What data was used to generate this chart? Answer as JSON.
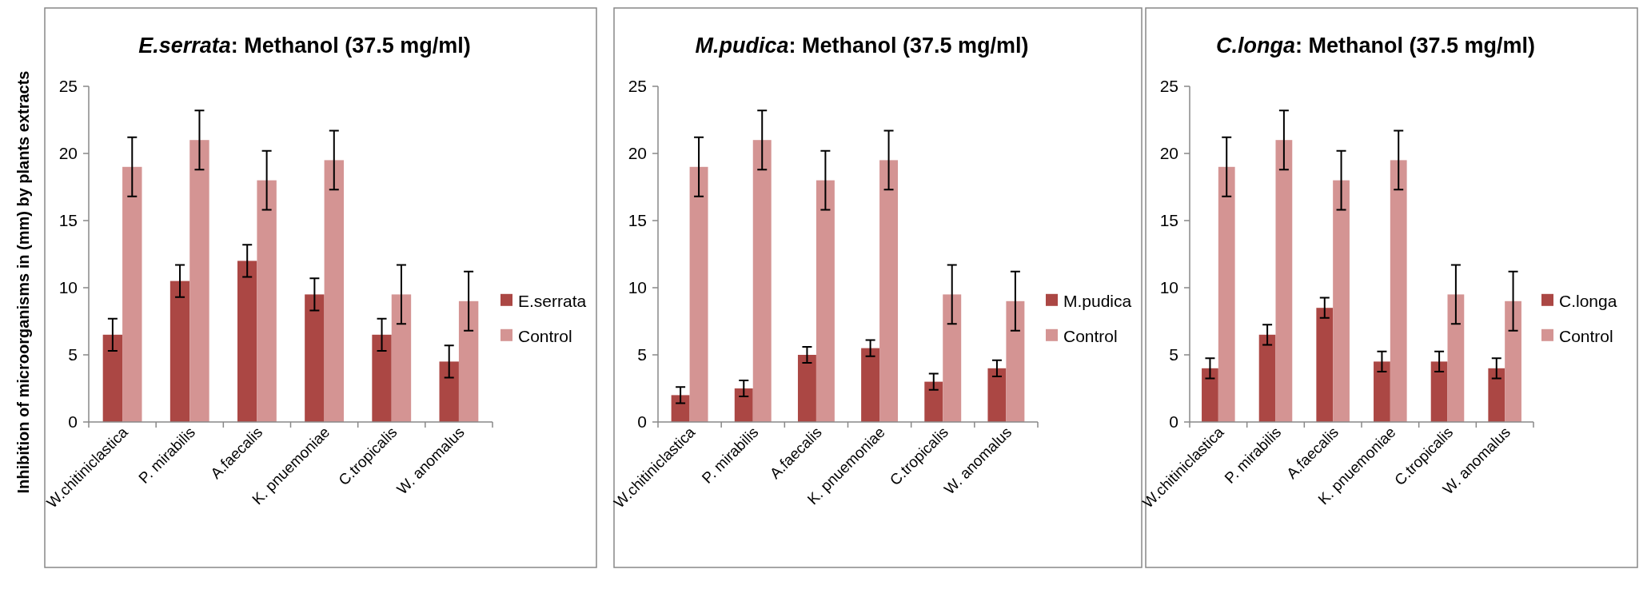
{
  "chart_data": [
    {
      "type": "bar",
      "title": "E.serrata: Methanol (37.5 mg/ml)",
      "ylabel": "Inhibition of microorganisms in (mm) by plants extracts",
      "categories": [
        "W.chitiniclastica",
        "P. mirabilis",
        "A.faecalis",
        "K. pnuemoniae",
        "C.tropicalis",
        "W. anomalus"
      ],
      "ylim": [
        0,
        25
      ],
      "yticks": [
        0,
        5,
        10,
        15,
        20,
        25
      ],
      "legend": "right",
      "series": [
        {
          "name": "E.serrata",
          "color": "#ab4744",
          "values": [
            6.5,
            10.5,
            12,
            9.5,
            6.5,
            4.5
          ],
          "errors": [
            1.2,
            1.2,
            1.2,
            1.2,
            1.2,
            1.2
          ]
        },
        {
          "name": "Control",
          "color": "#d49493",
          "values": [
            19,
            21,
            18,
            19.5,
            9.5,
            9
          ],
          "errors": [
            2.2,
            2.2,
            2.2,
            2.2,
            2.2,
            2.2
          ]
        }
      ]
    },
    {
      "type": "bar",
      "title": "M.pudica: Methanol (37.5 mg/ml)",
      "categories": [
        "W.chitiniclastica",
        "P. mirabilis",
        "A.faecalis",
        "K. pnuemoniae",
        "C.tropicalis",
        "W. anomalus"
      ],
      "ylim": [
        0,
        25
      ],
      "yticks": [
        0,
        5,
        10,
        15,
        20,
        25
      ],
      "legend": "right",
      "series": [
        {
          "name": "M.pudica",
          "color": "#ab4744",
          "values": [
            2,
            2.5,
            5,
            5.5,
            3,
            4
          ],
          "errors": [
            0.6,
            0.6,
            0.6,
            0.6,
            0.6,
            0.6
          ]
        },
        {
          "name": "Control",
          "color": "#d49493",
          "values": [
            19,
            21,
            18,
            19.5,
            9.5,
            9
          ],
          "errors": [
            2.2,
            2.2,
            2.2,
            2.2,
            2.2,
            2.2
          ]
        }
      ]
    },
    {
      "type": "bar",
      "title": "C.longa: Methanol (37.5 mg/ml)",
      "categories": [
        "W.chitiniclastica",
        "P. mirabilis",
        "A.faecalis",
        "K. pnuemoniae",
        "C.tropicalis",
        "W. anomalus"
      ],
      "ylim": [
        0,
        25
      ],
      "yticks": [
        0,
        5,
        10,
        15,
        20,
        25
      ],
      "legend": "right",
      "series": [
        {
          "name": "C.longa",
          "color": "#ab4744",
          "values": [
            4,
            6.5,
            8.5,
            4.5,
            4.5,
            4
          ],
          "errors": [
            0.75,
            0.75,
            0.75,
            0.75,
            0.75,
            0.75
          ]
        },
        {
          "name": "Control",
          "color": "#d49493",
          "values": [
            19,
            21,
            18,
            19.5,
            9.5,
            9
          ],
          "errors": [
            2.2,
            2.2,
            2.2,
            2.2,
            2.2,
            2.2
          ]
        }
      ]
    }
  ]
}
